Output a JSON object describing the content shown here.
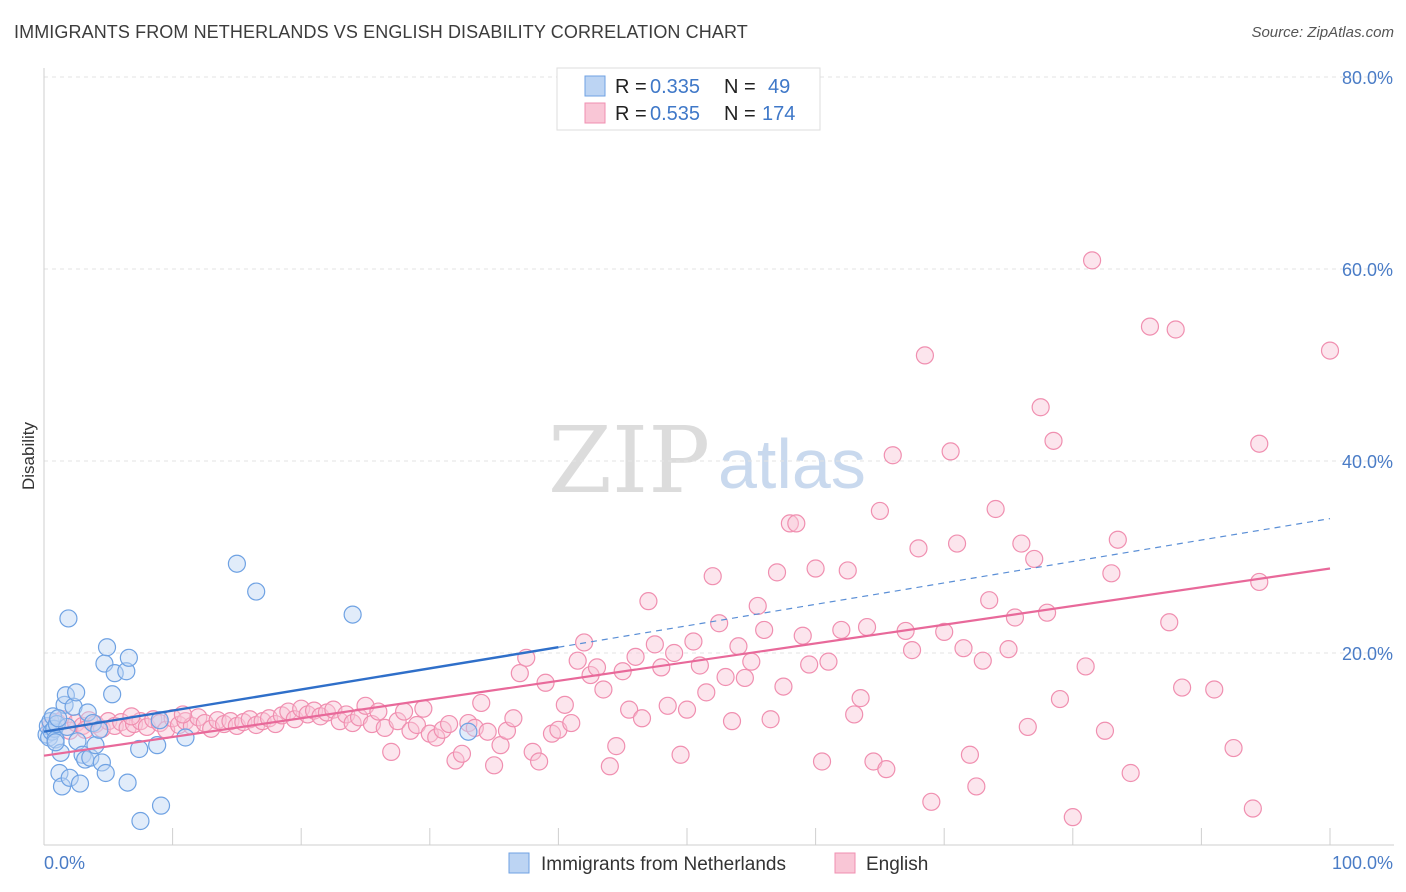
{
  "title": "IMMIGRANTS FROM NETHERLANDS VS ENGLISH DISABILITY CORRELATION CHART",
  "source": "Source: ZipAtlas.com",
  "watermark": {
    "part1": "ZIP",
    "part2": "atlas"
  },
  "legend": {
    "rows": [
      {
        "r_label": "R =",
        "r_value": "0.335",
        "n_label": "N =",
        "n_value": "49",
        "color": "#6fa2e3"
      },
      {
        "r_label": "R =",
        "r_value": "0.535",
        "n_label": "N =",
        "n_value": "174",
        "color": "#f08fb0"
      }
    ]
  },
  "chart_data": {
    "type": "scatter",
    "title": "IMMIGRANTS FROM NETHERLANDS VS ENGLISH DISABILITY CORRELATION CHART",
    "xlabel": "",
    "ylabel": "Disability",
    "xlim": [
      0,
      100
    ],
    "ylim": [
      0,
      80
    ],
    "x_tick_labels": [
      "0.0%",
      "100.0%"
    ],
    "y_tick_labels": [
      "20.0%",
      "40.0%",
      "60.0%",
      "80.0%"
    ],
    "y_ticks": [
      20,
      40,
      60,
      80
    ],
    "grid": true,
    "legend_position": "top-center",
    "series": [
      {
        "name": "Immigrants from Netherlands",
        "color": "#6fa2e3",
        "trend": {
          "x": [
            0,
            40,
            100
          ],
          "y": [
            11.8,
            20.6,
            34.0
          ],
          "solid_until": 40
        },
        "points": [
          [
            0.2,
            11.5
          ],
          [
            0.3,
            12.4
          ],
          [
            0.4,
            11.2
          ],
          [
            0.5,
            12.9
          ],
          [
            0.6,
            11.8
          ],
          [
            0.7,
            13.4
          ],
          [
            0.8,
            12.1
          ],
          [
            0.9,
            11.0
          ],
          [
            1.0,
            12.6
          ],
          [
            1.2,
            7.5
          ],
          [
            1.3,
            9.6
          ],
          [
            1.4,
            6.1
          ],
          [
            1.6,
            14.6
          ],
          [
            1.7,
            15.6
          ],
          [
            1.8,
            12.3
          ],
          [
            2.0,
            7.0
          ],
          [
            2.3,
            14.4
          ],
          [
            2.5,
            15.9
          ],
          [
            2.6,
            10.8
          ],
          [
            2.8,
            6.4
          ],
          [
            3.0,
            9.4
          ],
          [
            3.2,
            8.9
          ],
          [
            3.4,
            13.8
          ],
          [
            3.6,
            9.1
          ],
          [
            3.8,
            12.7
          ],
          [
            4.0,
            10.4
          ],
          [
            4.3,
            12.0
          ],
          [
            4.5,
            8.6
          ],
          [
            4.7,
            18.9
          ],
          [
            4.8,
            7.5
          ],
          [
            4.9,
            20.6
          ],
          [
            5.3,
            15.7
          ],
          [
            5.5,
            17.9
          ],
          [
            6.4,
            18.1
          ],
          [
            6.5,
            6.5
          ],
          [
            6.6,
            19.5
          ],
          [
            7.4,
            10.0
          ],
          [
            7.5,
            2.5
          ],
          [
            8.8,
            10.4
          ],
          [
            9.1,
            4.1
          ],
          [
            11.0,
            11.2
          ],
          [
            1.9,
            23.6
          ],
          [
            15.0,
            29.3
          ],
          [
            16.5,
            26.4
          ],
          [
            24.0,
            24.0
          ],
          [
            33.0,
            11.8
          ],
          [
            9.0,
            13.0
          ],
          [
            1.1,
            13.2
          ],
          [
            0.9,
            10.7
          ]
        ]
      },
      {
        "name": "English",
        "color": "#f08fb0",
        "trend": {
          "x": [
            0,
            100
          ],
          "y": [
            9.3,
            28.8
          ]
        },
        "points": [
          [
            0.5,
            12.3
          ],
          [
            1.0,
            12.8
          ],
          [
            1.5,
            13.1
          ],
          [
            2.0,
            11.9
          ],
          [
            2.5,
            12.7
          ],
          [
            3.0,
            12.4
          ],
          [
            3.5,
            13.0
          ],
          [
            4.0,
            12.6
          ],
          [
            4.5,
            12.1
          ],
          [
            5.0,
            12.9
          ],
          [
            5.5,
            12.4
          ],
          [
            6.0,
            12.8
          ],
          [
            6.5,
            12.2
          ],
          [
            7.0,
            12.6
          ],
          [
            7.5,
            12.9
          ],
          [
            8.0,
            12.3
          ],
          [
            8.5,
            13.1
          ],
          [
            9.0,
            12.7
          ],
          [
            9.5,
            12.0
          ],
          [
            10.0,
            13.2
          ],
          [
            10.5,
            12.5
          ],
          [
            11.0,
            12.9
          ],
          [
            11.5,
            12.4
          ],
          [
            12.0,
            13.3
          ],
          [
            12.5,
            12.7
          ],
          [
            13.0,
            12.1
          ],
          [
            13.5,
            13.0
          ],
          [
            14.0,
            12.6
          ],
          [
            14.5,
            12.9
          ],
          [
            15.0,
            12.4
          ],
          [
            15.5,
            12.8
          ],
          [
            16.0,
            13.1
          ],
          [
            16.5,
            12.5
          ],
          [
            17.0,
            12.9
          ],
          [
            17.5,
            13.2
          ],
          [
            18.0,
            12.6
          ],
          [
            18.5,
            13.5
          ],
          [
            19.0,
            13.9
          ],
          [
            19.5,
            13.1
          ],
          [
            20.0,
            14.2
          ],
          [
            20.5,
            13.6
          ],
          [
            21.0,
            14.0
          ],
          [
            21.5,
            13.4
          ],
          [
            22.0,
            13.8
          ],
          [
            22.5,
            14.1
          ],
          [
            23.0,
            12.9
          ],
          [
            23.5,
            13.6
          ],
          [
            24.0,
            12.7
          ],
          [
            24.5,
            13.3
          ],
          [
            25.0,
            14.5
          ],
          [
            25.5,
            12.6
          ],
          [
            26.0,
            13.9
          ],
          [
            26.5,
            12.2
          ],
          [
            27.0,
            9.7
          ],
          [
            27.5,
            12.9
          ],
          [
            28.0,
            13.9
          ],
          [
            28.5,
            11.9
          ],
          [
            29.0,
            12.5
          ],
          [
            29.5,
            14.2
          ],
          [
            30.0,
            11.6
          ],
          [
            30.5,
            11.2
          ],
          [
            31.0,
            12.0
          ],
          [
            31.5,
            12.6
          ],
          [
            32.0,
            8.8
          ],
          [
            32.5,
            9.5
          ],
          [
            33.0,
            12.7
          ],
          [
            33.5,
            12.2
          ],
          [
            34.0,
            14.8
          ],
          [
            34.5,
            11.8
          ],
          [
            35.0,
            8.3
          ],
          [
            35.5,
            10.4
          ],
          [
            36.0,
            11.9
          ],
          [
            36.5,
            13.2
          ],
          [
            37.0,
            17.9
          ],
          [
            37.5,
            19.5
          ],
          [
            38.0,
            9.7
          ],
          [
            38.5,
            8.7
          ],
          [
            39.0,
            16.9
          ],
          [
            39.5,
            11.6
          ],
          [
            40.0,
            12.0
          ],
          [
            40.5,
            14.6
          ],
          [
            41.0,
            12.7
          ],
          [
            41.5,
            19.2
          ],
          [
            42.0,
            21.1
          ],
          [
            42.5,
            17.7
          ],
          [
            43.0,
            18.5
          ],
          [
            43.5,
            16.2
          ],
          [
            44.0,
            8.2
          ],
          [
            44.5,
            10.3
          ],
          [
            45.0,
            18.1
          ],
          [
            45.5,
            14.1
          ],
          [
            46.0,
            19.6
          ],
          [
            46.5,
            13.2
          ],
          [
            47.0,
            25.4
          ],
          [
            47.5,
            20.9
          ],
          [
            48.0,
            18.5
          ],
          [
            48.5,
            14.5
          ],
          [
            49.0,
            20.0
          ],
          [
            49.5,
            9.4
          ],
          [
            50.0,
            14.1
          ],
          [
            50.5,
            21.2
          ],
          [
            51.0,
            18.7
          ],
          [
            51.5,
            15.9
          ],
          [
            52.0,
            28.0
          ],
          [
            52.5,
            23.1
          ],
          [
            53.0,
            17.5
          ],
          [
            53.5,
            12.9
          ],
          [
            54.0,
            20.7
          ],
          [
            54.5,
            17.4
          ],
          [
            55.0,
            19.1
          ],
          [
            55.5,
            24.9
          ],
          [
            56.0,
            22.4
          ],
          [
            56.5,
            13.1
          ],
          [
            57.0,
            28.4
          ],
          [
            57.5,
            16.5
          ],
          [
            58.0,
            33.5
          ],
          [
            58.5,
            33.5
          ],
          [
            59.0,
            21.8
          ],
          [
            59.5,
            18.8
          ],
          [
            60.0,
            28.8
          ],
          [
            60.5,
            8.7
          ],
          [
            61.0,
            19.1
          ],
          [
            62.0,
            22.4
          ],
          [
            62.5,
            28.6
          ],
          [
            63.0,
            13.6
          ],
          [
            63.5,
            15.3
          ],
          [
            64.0,
            22.7
          ],
          [
            64.5,
            8.7
          ],
          [
            65.0,
            34.8
          ],
          [
            65.5,
            7.9
          ],
          [
            66.0,
            40.6
          ],
          [
            67.0,
            22.3
          ],
          [
            67.5,
            20.3
          ],
          [
            68.0,
            30.9
          ],
          [
            68.5,
            51.0
          ],
          [
            69.0,
            4.5
          ],
          [
            70.0,
            22.2
          ],
          [
            70.5,
            41.0
          ],
          [
            71.0,
            31.4
          ],
          [
            71.5,
            20.5
          ],
          [
            72.0,
            9.4
          ],
          [
            72.5,
            6.1
          ],
          [
            73.0,
            19.2
          ],
          [
            73.5,
            25.5
          ],
          [
            74.0,
            35.0
          ],
          [
            75.0,
            20.4
          ],
          [
            75.5,
            23.7
          ],
          [
            76.0,
            31.4
          ],
          [
            76.5,
            12.3
          ],
          [
            77.0,
            29.8
          ],
          [
            77.5,
            45.6
          ],
          [
            78.0,
            24.2
          ],
          [
            78.5,
            42.1
          ],
          [
            79.0,
            15.2
          ],
          [
            80.0,
            2.9
          ],
          [
            81.0,
            18.6
          ],
          [
            81.5,
            60.9
          ],
          [
            82.5,
            11.9
          ],
          [
            83.0,
            28.3
          ],
          [
            83.5,
            31.8
          ],
          [
            84.5,
            7.5
          ],
          [
            86.0,
            54.0
          ],
          [
            87.5,
            23.2
          ],
          [
            88.0,
            53.7
          ],
          [
            88.5,
            16.4
          ],
          [
            91.0,
            16.2
          ],
          [
            92.5,
            10.1
          ],
          [
            94.0,
            3.8
          ],
          [
            94.5,
            41.8
          ],
          [
            94.5,
            27.4
          ],
          [
            100.0,
            51.5
          ],
          [
            3.2,
            12.0
          ],
          [
            6.8,
            13.4
          ],
          [
            10.8,
            13.6
          ]
        ]
      }
    ]
  }
}
